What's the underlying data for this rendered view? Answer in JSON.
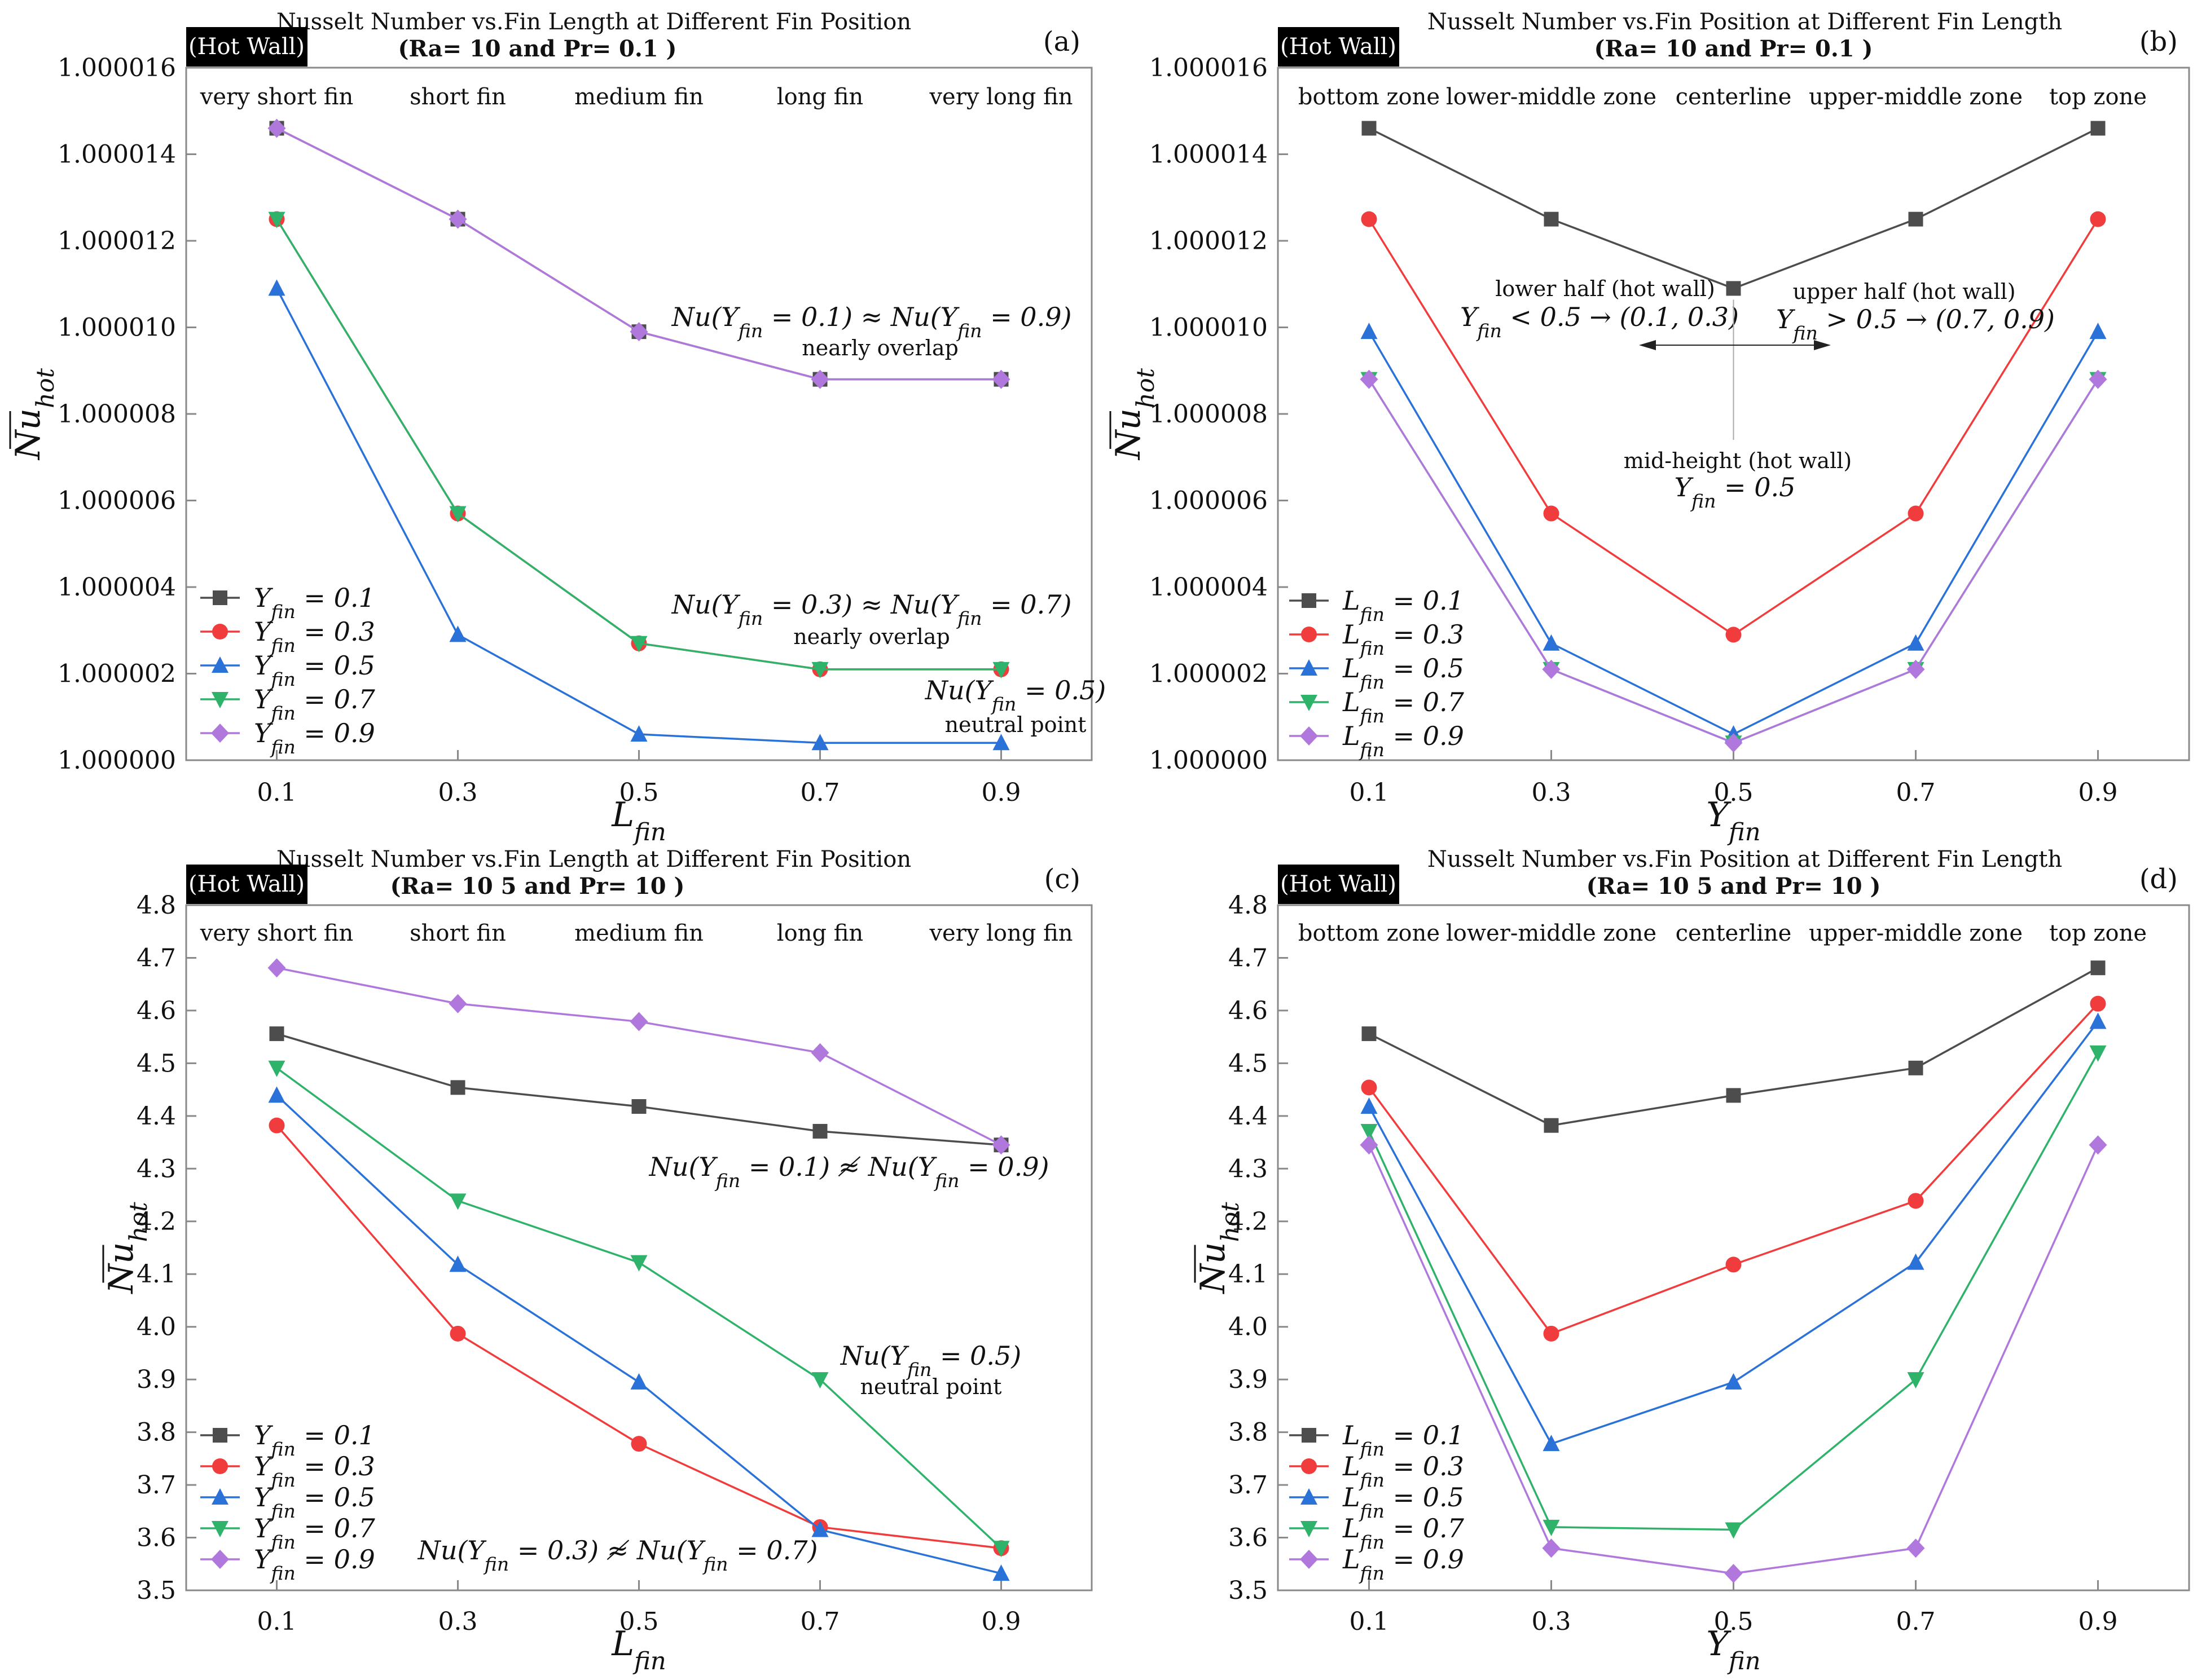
{
  "colors": {
    "s1": "#4d4d4d",
    "s2": "#f03c3c",
    "s3": "#2a72d8",
    "s4": "#2fb26a",
    "s5": "#b078dc",
    "axis": "#8a8a8a",
    "badge": "#000000"
  },
  "chart_data": [
    {
      "type": "line",
      "panel_label": "(a)",
      "badge": "(Hot Wall)",
      "title": "Nusselt Number vs.Fin Length at Different Fin Position",
      "subtitle": "(Ra= 10  and Pr= 0.1 )",
      "xlabel": "L_fin",
      "ylabel": "Nu_hot",
      "x": [
        0.1,
        0.3,
        0.5,
        0.7,
        0.9
      ],
      "ylim": [
        1.0,
        1.000016
      ],
      "yticks": [
        "1.000000",
        "1.000002",
        "1.000004",
        "1.000006",
        "1.000008",
        "1.000010",
        "1.000012",
        "1.000014",
        "1.000016"
      ],
      "category_labels": [
        "very short fin",
        "short fin",
        "medium fin",
        "long fin",
        "very long fin"
      ],
      "series": [
        {
          "name": "Y_fin = 0.1",
          "values": [
            1.0000146,
            1.0000125,
            1.0000099,
            1.0000088,
            1.0000088
          ]
        },
        {
          "name": "Y_fin = 0.3",
          "values": [
            1.0000125,
            1.0000057,
            1.0000027,
            1.0000021,
            1.0000021
          ]
        },
        {
          "name": "Y_fin = 0.5",
          "values": [
            1.0000109,
            1.0000029,
            1.0000006,
            1.0000004,
            1.0000004
          ]
        },
        {
          "name": "Y_fin = 0.7",
          "values": [
            1.0000125,
            1.0000057,
            1.0000027,
            1.0000021,
            1.0000021
          ]
        },
        {
          "name": "Y_fin = 0.9",
          "values": [
            1.0000146,
            1.0000125,
            1.0000099,
            1.0000088,
            1.0000088
          ]
        }
      ],
      "annotations": [
        {
          "text": "Nu(Y_fin = 0.1) ≈ Nu(Y_fin = 0.9)",
          "style": "big"
        },
        {
          "text": "nearly overlap",
          "style": "small"
        },
        {
          "text": "Nu(Y_fin = 0.3) ≈ Nu(Y_fin = 0.7)",
          "style": "big"
        },
        {
          "text": "nearly overlap",
          "style": "small"
        },
        {
          "text": "Nu(Y_fin = 0.5)",
          "style": "big"
        },
        {
          "text": "neutral point",
          "style": "small"
        }
      ]
    },
    {
      "type": "line",
      "panel_label": "(b)",
      "badge": "(Hot Wall)",
      "title": "Nusselt Number vs.Fin Position at Different Fin Length",
      "subtitle": "(Ra= 10  and Pr= 0.1 )",
      "xlabel": "Y_fin",
      "ylabel": "Nu_hot",
      "x": [
        0.1,
        0.3,
        0.5,
        0.7,
        0.9
      ],
      "ylim": [
        1.0,
        1.000016
      ],
      "yticks": [
        "1.000000",
        "1.000002",
        "1.000004",
        "1.000006",
        "1.000008",
        "1.000010",
        "1.000012",
        "1.000014",
        "1.000016"
      ],
      "category_labels": [
        "bottom zone",
        "lower-middle zone",
        "centerline",
        "upper-middle zone",
        "top zone"
      ],
      "series": [
        {
          "name": "L_fin = 0.1",
          "values": [
            1.0000146,
            1.0000125,
            1.0000109,
            1.0000125,
            1.0000146
          ]
        },
        {
          "name": "L_fin = 0.3",
          "values": [
            1.0000125,
            1.0000057,
            1.0000029,
            1.0000057,
            1.0000125
          ]
        },
        {
          "name": "L_fin = 0.5",
          "values": [
            1.0000099,
            1.0000027,
            1.0000006,
            1.0000027,
            1.0000099
          ]
        },
        {
          "name": "L_fin = 0.7",
          "values": [
            1.0000088,
            1.0000021,
            1.0000004,
            1.0000021,
            1.0000088
          ]
        },
        {
          "name": "L_fin = 0.9",
          "values": [
            1.0000088,
            1.0000021,
            1.0000004,
            1.0000021,
            1.0000088
          ]
        }
      ],
      "annotations": [
        {
          "text": "lower half (hot wall)",
          "style": "small"
        },
        {
          "text": "Y_fin < 0.5 → (0.1, 0.3)",
          "style": "big"
        },
        {
          "text": "upper half (hot wall)",
          "style": "small"
        },
        {
          "text": "Y_fin > 0.5 → (0.7, 0.9)",
          "style": "big"
        },
        {
          "text": "mid-height (hot wall)",
          "style": "small"
        },
        {
          "text": "Y_fin = 0.5",
          "style": "big"
        }
      ]
    },
    {
      "type": "line",
      "panel_label": "(c)",
      "badge": "(Hot Wall)",
      "title": "Nusselt Number vs.Fin Length at Different Fin Position",
      "subtitle": "(Ra= 10 5 and Pr= 10 )",
      "xlabel": "L_fin",
      "ylabel": "Nu_hot",
      "x": [
        0.1,
        0.3,
        0.5,
        0.7,
        0.9
      ],
      "ylim": [
        3.5,
        4.8
      ],
      "yticks": [
        "3.5",
        "3.6",
        "3.7",
        "3.8",
        "3.9",
        "4.0",
        "4.1",
        "4.2",
        "4.3",
        "4.4",
        "4.5",
        "4.6",
        "4.7",
        "4.8"
      ],
      "category_labels": [
        "very short fin",
        "short fin",
        "medium fin",
        "long fin",
        "very long fin"
      ],
      "series": [
        {
          "name": "Y_fin = 0.1",
          "values": [
            4.556,
            4.454,
            4.418,
            4.371,
            4.345
          ]
        },
        {
          "name": "Y_fin = 0.3",
          "values": [
            4.382,
            3.987,
            3.778,
            3.62,
            3.58
          ]
        },
        {
          "name": "Y_fin = 0.5",
          "values": [
            4.439,
            4.118,
            3.895,
            3.615,
            3.532
          ]
        },
        {
          "name": "Y_fin = 0.7",
          "values": [
            4.491,
            4.239,
            4.122,
            3.9,
            3.58
          ]
        },
        {
          "name": "Y_fin = 0.9",
          "values": [
            4.681,
            4.613,
            4.579,
            4.52,
            4.345
          ]
        }
      ],
      "annotations": [
        {
          "text": "Nu(Y_fin = 0.1) ≉ Nu(Y_fin = 0.9)",
          "style": "big"
        },
        {
          "text": "Nu(Y_fin = 0.5)",
          "style": "big"
        },
        {
          "text": "neutral point",
          "style": "small"
        },
        {
          "text": "Nu(Y_fin = 0.3) ≉ Nu(Y_fin = 0.7)",
          "style": "big"
        }
      ]
    },
    {
      "type": "line",
      "panel_label": "(d)",
      "badge": "(Hot Wall)",
      "title": "Nusselt Number vs.Fin Position at Different Fin Length",
      "subtitle": "(Ra= 10 5 and Pr= 10 )",
      "xlabel": "Y_fin",
      "ylabel": "Nu_hot",
      "x": [
        0.1,
        0.3,
        0.5,
        0.7,
        0.9
      ],
      "ylim": [
        3.5,
        4.8
      ],
      "yticks": [
        "3.5",
        "3.6",
        "3.7",
        "3.8",
        "3.9",
        "4.0",
        "4.1",
        "4.2",
        "4.3",
        "4.4",
        "4.5",
        "4.6",
        "4.7",
        "4.8"
      ],
      "category_labels": [
        "bottom zone",
        "lower-middle zone",
        "centerline",
        "upper-middle zone",
        "top zone"
      ],
      "series": [
        {
          "name": "L_fin = 0.1",
          "values": [
            4.556,
            4.382,
            4.439,
            4.491,
            4.681
          ]
        },
        {
          "name": "L_fin = 0.3",
          "values": [
            4.454,
            3.987,
            4.118,
            4.239,
            4.613
          ]
        },
        {
          "name": "L_fin = 0.5",
          "values": [
            4.418,
            3.778,
            3.895,
            4.122,
            4.579
          ]
        },
        {
          "name": "L_fin = 0.7",
          "values": [
            4.371,
            3.62,
            3.615,
            3.9,
            4.52
          ]
        },
        {
          "name": "L_fin = 0.9",
          "values": [
            4.345,
            3.58,
            3.532,
            3.58,
            4.345
          ]
        }
      ],
      "annotations": []
    }
  ]
}
